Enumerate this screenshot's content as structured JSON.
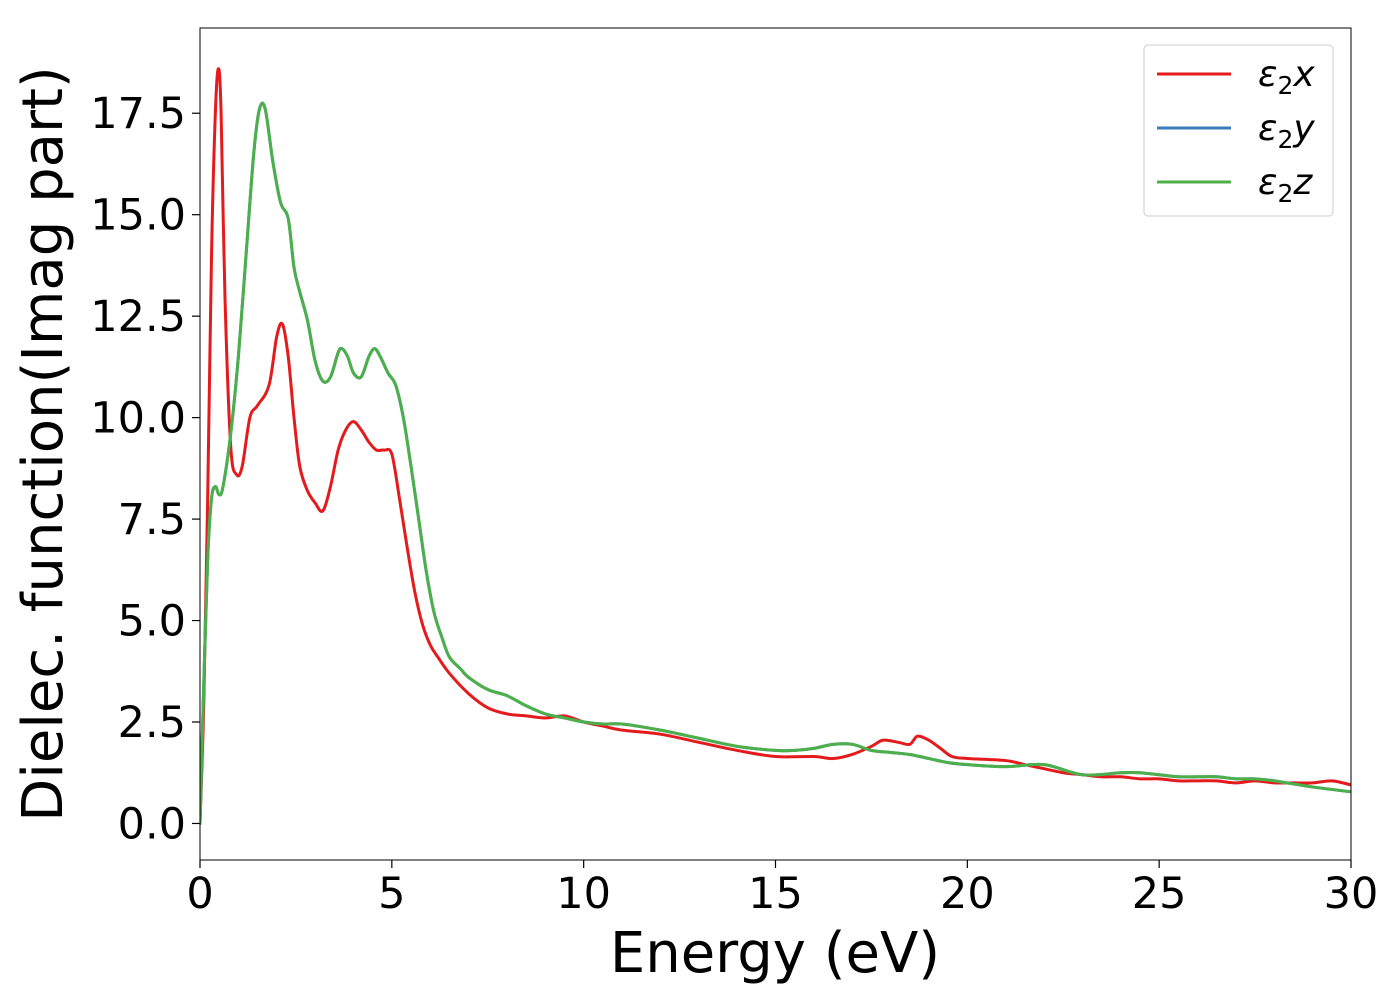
{
  "chart_data": {
    "type": "line",
    "title": "",
    "xlabel": "Energy (eV)",
    "ylabel": "Dielec. function(Imag part)",
    "xlim": [
      0,
      30
    ],
    "ylim": [
      -0.9,
      19.6
    ],
    "xticks": [
      0,
      5,
      10,
      15,
      20,
      25,
      30
    ],
    "xtick_labels": [
      "0",
      "5",
      "10",
      "15",
      "20",
      "25",
      "30"
    ],
    "yticks": [
      0.0,
      2.5,
      5.0,
      7.5,
      10.0,
      12.5,
      15.0,
      17.5
    ],
    "ytick_labels": [
      "0.0",
      "2.5",
      "5.0",
      "7.5",
      "10.0",
      "12.5",
      "15.0",
      "17.5"
    ],
    "grid": false,
    "legend_position": "top-right",
    "series": [
      {
        "name": "ε2x",
        "legend_base": "ε",
        "legend_sub": "2",
        "legend_var": "x",
        "color": "#e41a1c",
        "x": [
          0,
          0.1,
          0.2,
          0.3,
          0.4,
          0.48,
          0.55,
          0.65,
          0.8,
          0.95,
          1.1,
          1.3,
          1.5,
          1.8,
          2.0,
          2.15,
          2.3,
          2.45,
          2.6,
          2.8,
          3.0,
          3.2,
          3.4,
          3.6,
          3.8,
          4.0,
          4.2,
          4.4,
          4.6,
          4.8,
          5.0,
          5.2,
          5.4,
          5.6,
          5.8,
          6.0,
          6.2,
          6.5,
          7.0,
          7.5,
          8.0,
          8.5,
          9.0,
          9.5,
          10.0,
          10.5,
          11.0,
          12.0,
          13.0,
          14.0,
          15.0,
          16.0,
          16.5,
          17.0,
          17.5,
          17.8,
          18.2,
          18.5,
          18.7,
          19.0,
          19.3,
          19.6,
          20.0,
          21.0,
          21.5,
          22.0,
          22.5,
          23.0,
          23.5,
          24.0,
          24.5,
          25.0,
          25.5,
          26.0,
          26.5,
          27.0,
          27.5,
          28.0,
          28.5,
          29.0,
          29.5,
          30.0
        ],
        "values": [
          0.0,
          3.0,
          8.0,
          14.0,
          17.5,
          18.6,
          17.5,
          13.0,
          9.3,
          8.6,
          8.8,
          10.0,
          10.3,
          10.8,
          12.0,
          12.3,
          11.5,
          10.0,
          8.8,
          8.2,
          7.9,
          7.7,
          8.3,
          9.2,
          9.7,
          9.9,
          9.7,
          9.4,
          9.2,
          9.2,
          9.1,
          8.0,
          6.8,
          5.7,
          4.9,
          4.4,
          4.1,
          3.7,
          3.2,
          2.85,
          2.7,
          2.65,
          2.6,
          2.65,
          2.5,
          2.4,
          2.3,
          2.2,
          2.0,
          1.8,
          1.65,
          1.65,
          1.6,
          1.7,
          1.9,
          2.05,
          2.0,
          1.95,
          2.15,
          2.05,
          1.85,
          1.65,
          1.6,
          1.55,
          1.45,
          1.35,
          1.25,
          1.2,
          1.15,
          1.15,
          1.1,
          1.1,
          1.05,
          1.05,
          1.05,
          1.0,
          1.05,
          1.0,
          1.0,
          1.0,
          1.05,
          0.95
        ]
      },
      {
        "name": "ε2y",
        "legend_base": "ε",
        "legend_sub": "2",
        "legend_var": "y",
        "color": "#377eb8",
        "x": [
          0,
          0.1,
          0.2,
          0.3,
          0.4,
          0.5,
          0.6,
          0.8,
          1.0,
          1.2,
          1.4,
          1.55,
          1.7,
          1.9,
          2.1,
          2.3,
          2.45,
          2.6,
          2.8,
          3.0,
          3.2,
          3.4,
          3.6,
          3.7,
          3.85,
          4.0,
          4.2,
          4.4,
          4.55,
          4.7,
          4.9,
          5.1,
          5.3,
          5.5,
          5.7,
          5.9,
          6.1,
          6.3,
          6.5,
          6.8,
          7.0,
          7.5,
          8.0,
          8.5,
          9.0,
          9.5,
          10.0,
          10.5,
          11.0,
          12.0,
          13.0,
          14.0,
          15.0,
          15.5,
          16.0,
          16.5,
          17.0,
          17.5,
          18.0,
          18.5,
          19.0,
          19.5,
          20.0,
          21.0,
          22.0,
          23.0,
          24.0,
          24.5,
          25.0,
          25.5,
          26.0,
          26.5,
          27.0,
          27.5,
          28.0,
          29.0,
          30.0
        ],
        "values": [
          0.0,
          3.5,
          6.5,
          8.0,
          8.3,
          8.1,
          8.3,
          9.6,
          11.5,
          14.0,
          16.5,
          17.6,
          17.6,
          16.3,
          15.3,
          14.9,
          13.7,
          13.1,
          12.4,
          11.4,
          10.9,
          11.0,
          11.6,
          11.7,
          11.5,
          11.1,
          11.0,
          11.5,
          11.7,
          11.5,
          11.1,
          10.8,
          10.0,
          8.8,
          7.5,
          6.2,
          5.2,
          4.6,
          4.1,
          3.8,
          3.6,
          3.3,
          3.15,
          2.9,
          2.7,
          2.6,
          2.5,
          2.45,
          2.45,
          2.3,
          2.1,
          1.9,
          1.8,
          1.8,
          1.85,
          1.95,
          1.95,
          1.8,
          1.75,
          1.7,
          1.6,
          1.5,
          1.45,
          1.4,
          1.45,
          1.2,
          1.25,
          1.25,
          1.2,
          1.15,
          1.15,
          1.15,
          1.1,
          1.1,
          1.05,
          0.9,
          0.78
        ]
      },
      {
        "name": "ε2z",
        "legend_base": "ε",
        "legend_sub": "2",
        "legend_var": "z",
        "color": "#4daf4a",
        "x": [
          0,
          0.1,
          0.2,
          0.3,
          0.4,
          0.5,
          0.6,
          0.8,
          1.0,
          1.2,
          1.4,
          1.55,
          1.7,
          1.9,
          2.1,
          2.3,
          2.45,
          2.6,
          2.8,
          3.0,
          3.2,
          3.4,
          3.6,
          3.7,
          3.85,
          4.0,
          4.2,
          4.4,
          4.55,
          4.7,
          4.9,
          5.1,
          5.3,
          5.5,
          5.7,
          5.9,
          6.1,
          6.3,
          6.5,
          6.8,
          7.0,
          7.5,
          8.0,
          8.5,
          9.0,
          9.5,
          10.0,
          10.5,
          11.0,
          12.0,
          13.0,
          14.0,
          15.0,
          15.5,
          16.0,
          16.5,
          17.0,
          17.5,
          18.0,
          18.5,
          19.0,
          19.5,
          20.0,
          21.0,
          22.0,
          23.0,
          24.0,
          24.5,
          25.0,
          25.5,
          26.0,
          26.5,
          27.0,
          27.5,
          28.0,
          29.0,
          30.0
        ],
        "values": [
          0.0,
          3.5,
          6.5,
          8.0,
          8.3,
          8.1,
          8.3,
          9.6,
          11.5,
          14.0,
          16.5,
          17.6,
          17.6,
          16.3,
          15.3,
          14.9,
          13.7,
          13.1,
          12.4,
          11.4,
          10.9,
          11.0,
          11.6,
          11.7,
          11.5,
          11.1,
          11.0,
          11.5,
          11.7,
          11.5,
          11.1,
          10.8,
          10.0,
          8.8,
          7.5,
          6.2,
          5.2,
          4.6,
          4.1,
          3.8,
          3.6,
          3.3,
          3.15,
          2.9,
          2.7,
          2.6,
          2.5,
          2.45,
          2.45,
          2.3,
          2.1,
          1.9,
          1.8,
          1.8,
          1.85,
          1.95,
          1.95,
          1.8,
          1.75,
          1.7,
          1.6,
          1.5,
          1.45,
          1.4,
          1.45,
          1.2,
          1.25,
          1.25,
          1.2,
          1.15,
          1.15,
          1.15,
          1.1,
          1.1,
          1.05,
          0.9,
          0.78
        ]
      }
    ]
  }
}
